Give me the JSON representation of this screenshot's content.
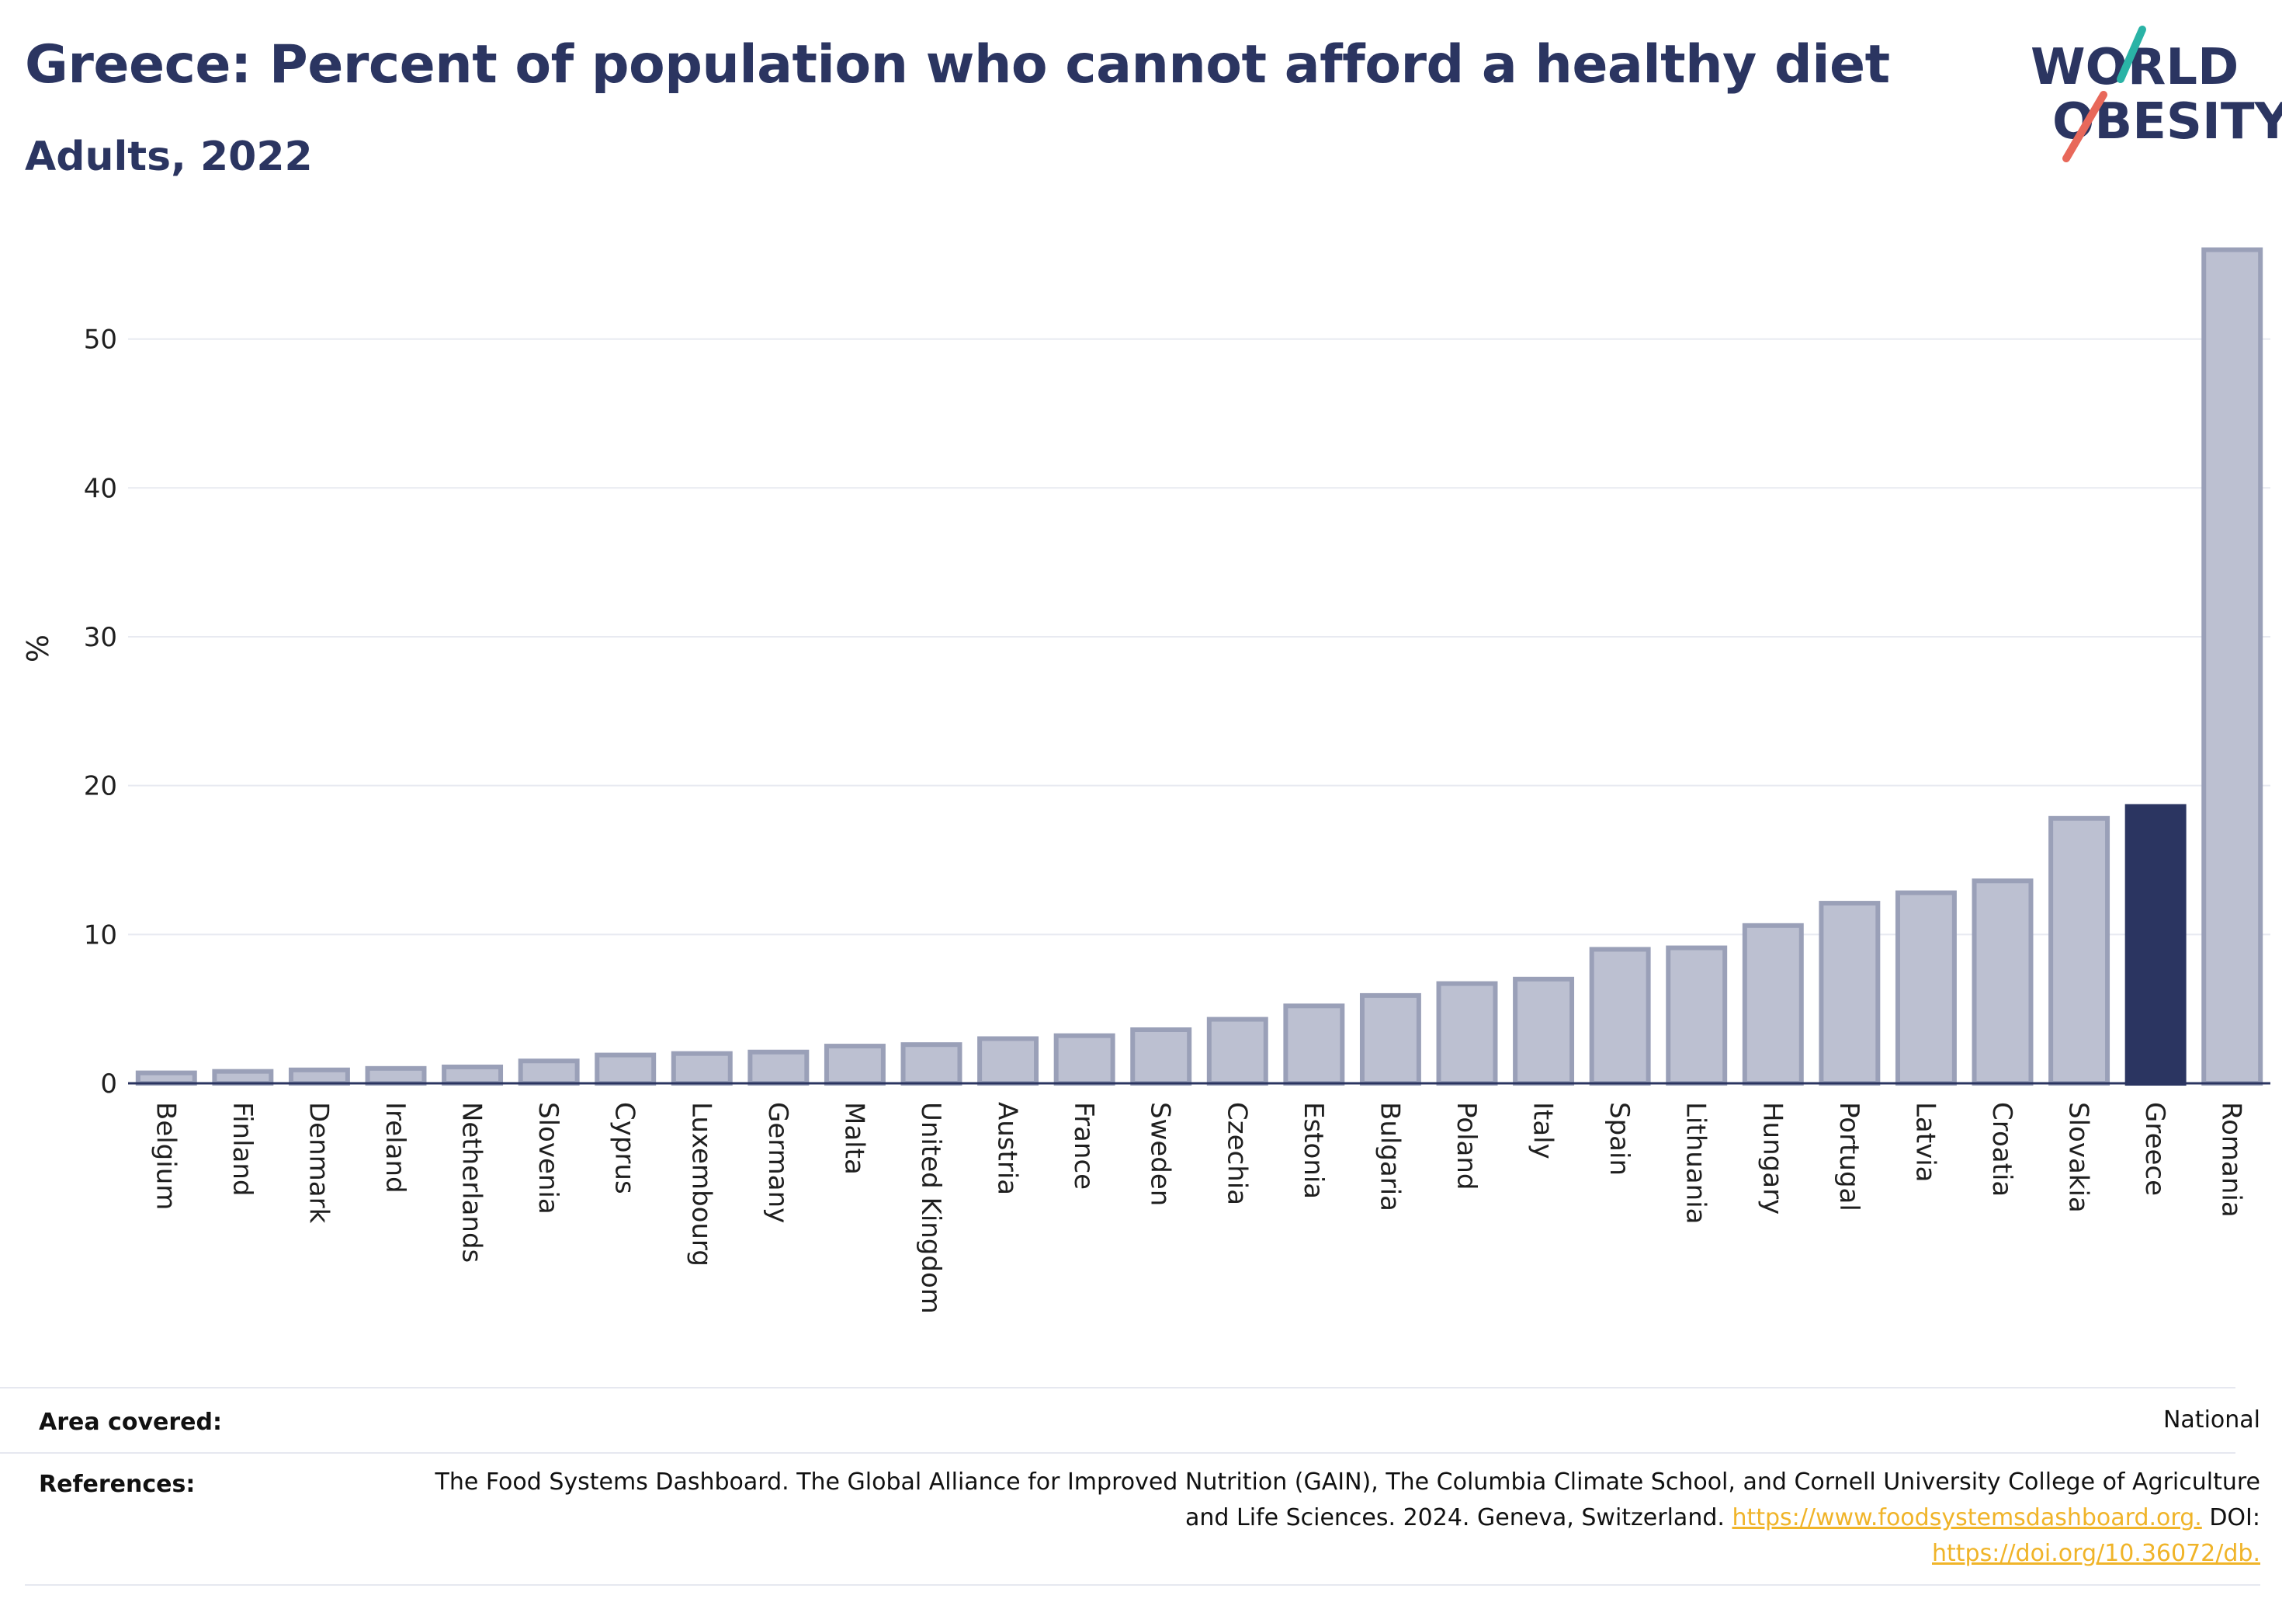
{
  "header": {
    "title": "Greece: Percent of population who cannot afford a healthy diet",
    "subtitle": "Adults, 2022"
  },
  "logo": {
    "line1": "WORLD",
    "line2": "OBESITY",
    "colors": {
      "text": "#2b3561",
      "slash_top": "#2ab3a6",
      "slash_bottom": "#e8685a"
    }
  },
  "chart_data": {
    "type": "bar",
    "ylabel": "%",
    "xlabel": "",
    "ylim": [
      0,
      56.5
    ],
    "yticks": [
      0,
      10,
      20,
      30,
      40,
      50
    ],
    "grid": true,
    "highlight": "Greece",
    "colors": {
      "bar": "#bcc0d1",
      "bar_edge": "#9aa0b8",
      "highlight": "#2b3561"
    },
    "categories": [
      "Belgium",
      "Finland",
      "Denmark",
      "Ireland",
      "Netherlands",
      "Slovenia",
      "Cyprus",
      "Luxembourg",
      "Germany",
      "Malta",
      "United Kingdom",
      "Austria",
      "France",
      "Sweden",
      "Czechia",
      "Estonia",
      "Bulgaria",
      "Poland",
      "Italy",
      "Spain",
      "Lithuania",
      "Hungary",
      "Portugal",
      "Latvia",
      "Croatia",
      "Slovakia",
      "Greece",
      "Romania"
    ],
    "values": [
      0.7,
      0.8,
      0.9,
      1.0,
      1.1,
      1.5,
      1.9,
      2.0,
      2.1,
      2.5,
      2.6,
      3.0,
      3.2,
      3.6,
      4.3,
      5.2,
      5.9,
      6.7,
      7.0,
      9.0,
      9.1,
      10.6,
      12.1,
      12.8,
      13.6,
      17.8,
      18.6,
      56.0
    ]
  },
  "info": {
    "area_label": "Area covered:",
    "area_value": "National",
    "ref_label": "References:",
    "ref_text": "The Food Systems Dashboard. The Global Alliance for Improved Nutrition (GAIN), The Columbia Climate School, and Cornell University College of Agriculture and Life Sciences. 2024. Geneva, Switzerland.",
    "ref_link1": "https://www.foodsystemsdashboard.org.",
    "ref_doi_label": "DOI:",
    "ref_link2": "https://doi.org/10.36072/db."
  }
}
